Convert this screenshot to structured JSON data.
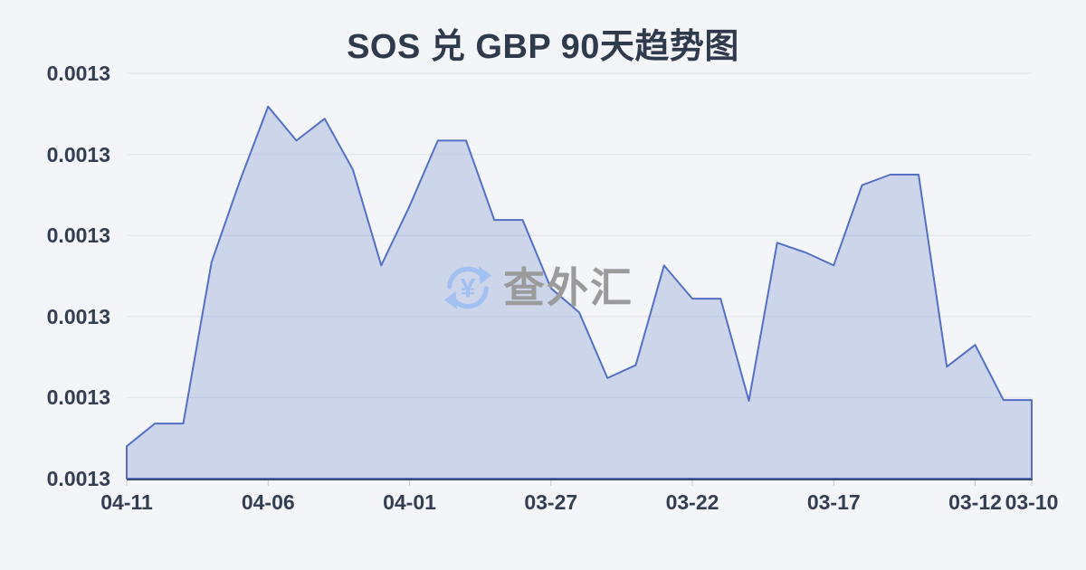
{
  "title": "SOS 兑 GBP 90天趋势图",
  "watermark": {
    "icon": "currency-exchange-icon",
    "text": "查外汇"
  },
  "chart_data": {
    "type": "area",
    "title": "SOS 兑 GBP 90天趋势图",
    "x": [
      "04-11",
      "04-10",
      "04-09",
      "04-08",
      "04-07",
      "04-06",
      "04-05",
      "04-04",
      "04-03",
      "04-02",
      "04-01",
      "03-31",
      "03-30",
      "03-29",
      "03-28",
      "03-27",
      "03-26",
      "03-25",
      "03-24",
      "03-23",
      "03-22",
      "03-21",
      "03-20",
      "03-19",
      "03-18",
      "03-17",
      "03-16",
      "03-15",
      "03-14",
      "03-13",
      "03-12",
      "03-11",
      "03-10"
    ],
    "values": [
      0.001284,
      0.0012868,
      0.0012868,
      0.0013067,
      0.0013167,
      0.0013259,
      0.0013217,
      0.0013244,
      0.0013181,
      0.0013063,
      0.0013136,
      0.0013217,
      0.0013217,
      0.0013119,
      0.0013119,
      0.0013035,
      0.0013005,
      0.0012924,
      0.001294,
      0.0013063,
      0.0013022,
      0.0013022,
      0.0012896,
      0.0013091,
      0.0013079,
      0.0013063,
      0.0013162,
      0.0013175,
      0.0013175,
      0.0012938,
      0.0012965,
      0.0012897,
      0.0012897
    ],
    "x_tick_labels": [
      "04-11",
      "04-06",
      "04-01",
      "03-27",
      "03-22",
      "03-17",
      "03-12",
      "03-10"
    ],
    "x_tick_indices": [
      0,
      5,
      10,
      15,
      20,
      25,
      30,
      32
    ],
    "y_tick_labels": [
      "0.0013",
      "0.0013",
      "0.0013",
      "0.0013",
      "0.0013",
      "0.0013"
    ],
    "ylim": [
      0.00128,
      0.00133
    ],
    "x_order": "descending-dates-left-to-right",
    "grid": true,
    "legend": false,
    "colors": {
      "line": "#5470c6",
      "fill": "rgba(84,112,198,0.24)",
      "axis_line": "#3c4e74",
      "gridline": "#e4e7ec",
      "tick": "#c4cad4",
      "label": "#333e52",
      "title": "#2f3a4d",
      "background": "#f3f5f8",
      "watermark_text": "#9b9b9b",
      "watermark_icon": "#a2c0f2"
    }
  }
}
